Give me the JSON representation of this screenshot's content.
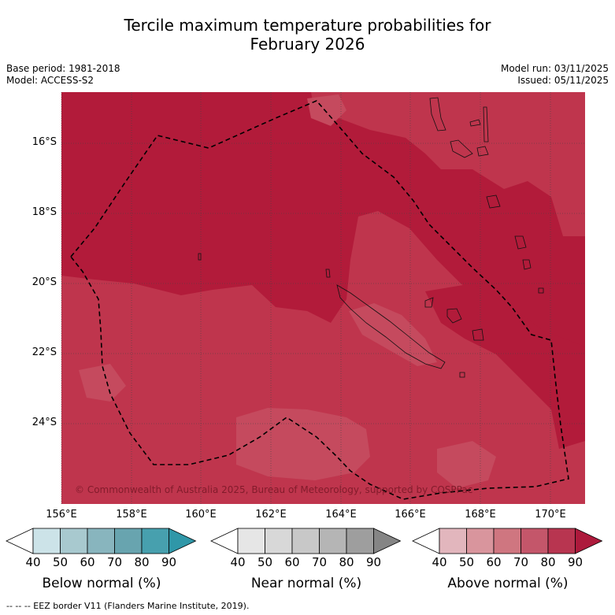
{
  "title_line1": "Tercile maximum temperature probabilities for",
  "title_line2": "February 2026",
  "meta_left": [
    "Base period: 1981-2018",
    "Model: ACCESS-S2"
  ],
  "meta_right": [
    "Model run: 03/11/2025",
    "Issued: 05/11/2025"
  ],
  "lat_labels": [
    "16°S",
    "18°S",
    "20°S",
    "22°S",
    "24°S"
  ],
  "lon_labels": [
    "156°E",
    "158°E",
    "160°E",
    "162°E",
    "164°E",
    "166°E",
    "168°E",
    "170°E"
  ],
  "copyright": "© Commonwealth of Australia 2025, Bureau of Meteorology, supported by COSPPac",
  "colors": {
    "above_dark": "#b21b3a",
    "above_mid": "#bf354d",
    "above_light": "#c54a5e",
    "below": [
      "#ffffff",
      "#cce3e8",
      "#a8c9cf",
      "#88b5be",
      "#68a4af",
      "#47a0ae",
      "#2f97a8"
    ],
    "near": [
      "#ffffff",
      "#e6e6e6",
      "#d8d8d8",
      "#c8c8c8",
      "#b5b5b5",
      "#9e9e9e",
      "#858585"
    ],
    "above": [
      "#ffffff",
      "#e2b6bd",
      "#d9959d",
      "#cf7680",
      "#c4566a",
      "#b83550",
      "#ad1a3c"
    ]
  },
  "colorbars": [
    {
      "title": "Below normal (%)",
      "ticks": [
        "40",
        "50",
        "60",
        "70",
        "80",
        "90"
      ]
    },
    {
      "title": "Near normal (%)",
      "ticks": [
        "40",
        "50",
        "60",
        "70",
        "80",
        "90"
      ]
    },
    {
      "title": "Above normal (%)",
      "ticks": [
        "40",
        "50",
        "60",
        "70",
        "80",
        "90"
      ]
    }
  ],
  "footer": "--  --  -- EEZ border V11 (Flanders Marine Institute, 2019)."
}
